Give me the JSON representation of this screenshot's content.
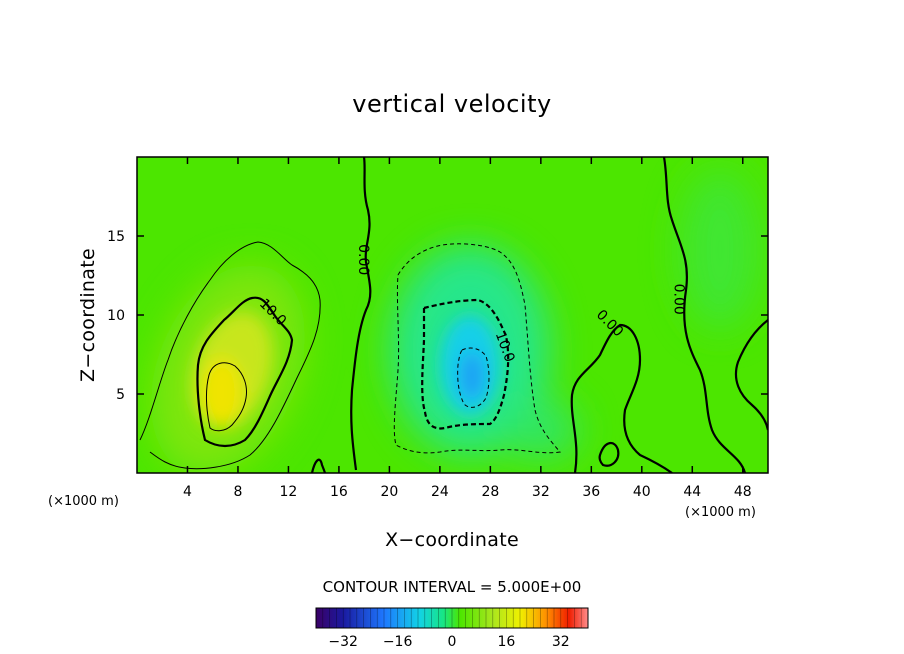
{
  "chart_data": {
    "type": "heatmap",
    "title": "vertical velocity",
    "xlabel": "X−coordinate",
    "ylabel": "Z−coordinate",
    "x_unit": "(×1000 m)",
    "z_unit": "(×1000 m)",
    "xlim": [
      0,
      50
    ],
    "ylim": [
      0,
      20
    ],
    "x_ticks": [
      4,
      8,
      12,
      16,
      20,
      24,
      28,
      32,
      36,
      40,
      44,
      48
    ],
    "y_ticks": [
      5,
      10,
      15
    ],
    "x_tick_labels": [
      "4",
      "8",
      "12",
      "16",
      "20",
      "24",
      "28",
      "32",
      "36",
      "40",
      "44",
      "48"
    ],
    "y_tick_labels": [
      "5",
      "10",
      "15"
    ],
    "contour_interval_text": "CONTOUR INTERVAL = 5.000E+00",
    "contour_labels": [
      {
        "text": "0.00",
        "x": 18.0,
        "z": 13.5
      },
      {
        "text": "10.0",
        "x": 10.8,
        "z": 10.2
      },
      {
        "text": "10.0",
        "x": 29.2,
        "z": 8.0
      },
      {
        "text": "0.00",
        "x": 37.5,
        "z": 9.5
      },
      {
        "text": "0.00",
        "x": 43.0,
        "z": 11.0
      }
    ],
    "features": [
      {
        "kind": "updraft",
        "x_center": 6.8,
        "z_center": 5.2,
        "peak_value": 18
      },
      {
        "kind": "downdraft",
        "x_center": 26.5,
        "z_center": 6.0,
        "peak_value": -16
      }
    ],
    "colorbar": {
      "range": [
        -40,
        40
      ],
      "tick_values": [
        -32,
        -16,
        0,
        16,
        32
      ],
      "tick_labels": [
        "−32",
        "−16",
        "0",
        "16",
        "32"
      ]
    },
    "colormap": [
      "#3a0066",
      "#1a1aa0",
      "#1e78ff",
      "#12d2e6",
      "#18e682",
      "#4ce600",
      "#aae61e",
      "#f0f000",
      "#ff8c00",
      "#f01e00",
      "#ff8c8c"
    ]
  }
}
